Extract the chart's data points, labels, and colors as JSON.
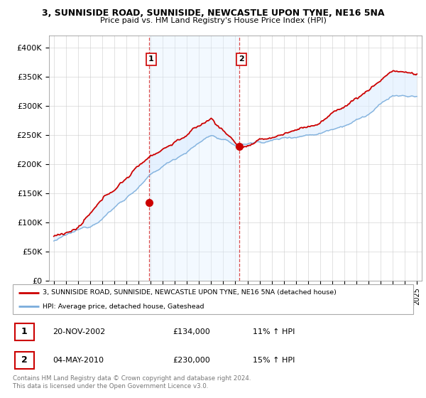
{
  "title": "3, SUNNISIDE ROAD, SUNNISIDE, NEWCASTLE UPON TYNE, NE16 5NA",
  "subtitle": "Price paid vs. HM Land Registry's House Price Index (HPI)",
  "legend_line1": "3, SUNNISIDE ROAD, SUNNISIDE, NEWCASTLE UPON TYNE, NE16 5NA (detached house)",
  "legend_line2": "HPI: Average price, detached house, Gateshead",
  "footer1": "Contains HM Land Registry data © Crown copyright and database right 2024.",
  "footer2": "This data is licensed under the Open Government Licence v3.0.",
  "transaction1_date": "20-NOV-2002",
  "transaction1_price": "£134,000",
  "transaction1_hpi": "11% ↑ HPI",
  "transaction2_date": "04-MAY-2010",
  "transaction2_price": "£230,000",
  "transaction2_hpi": "15% ↑ HPI",
  "red_color": "#cc0000",
  "blue_color": "#7aaddc",
  "shaded_color": "#ddeeff",
  "marker1_x_year": 2002.9,
  "marker1_y": 134000,
  "marker2_x_year": 2010.35,
  "marker2_y": 230000,
  "ylim": [
    0,
    420000
  ],
  "xlim_start": 1994.6,
  "xlim_end": 2025.4,
  "yticks": [
    0,
    50000,
    100000,
    150000,
    200000,
    250000,
    300000,
    350000,
    400000
  ],
  "ytick_labels": [
    "£0",
    "£50K",
    "£100K",
    "£150K",
    "£200K",
    "£250K",
    "£300K",
    "£350K",
    "£400K"
  ]
}
